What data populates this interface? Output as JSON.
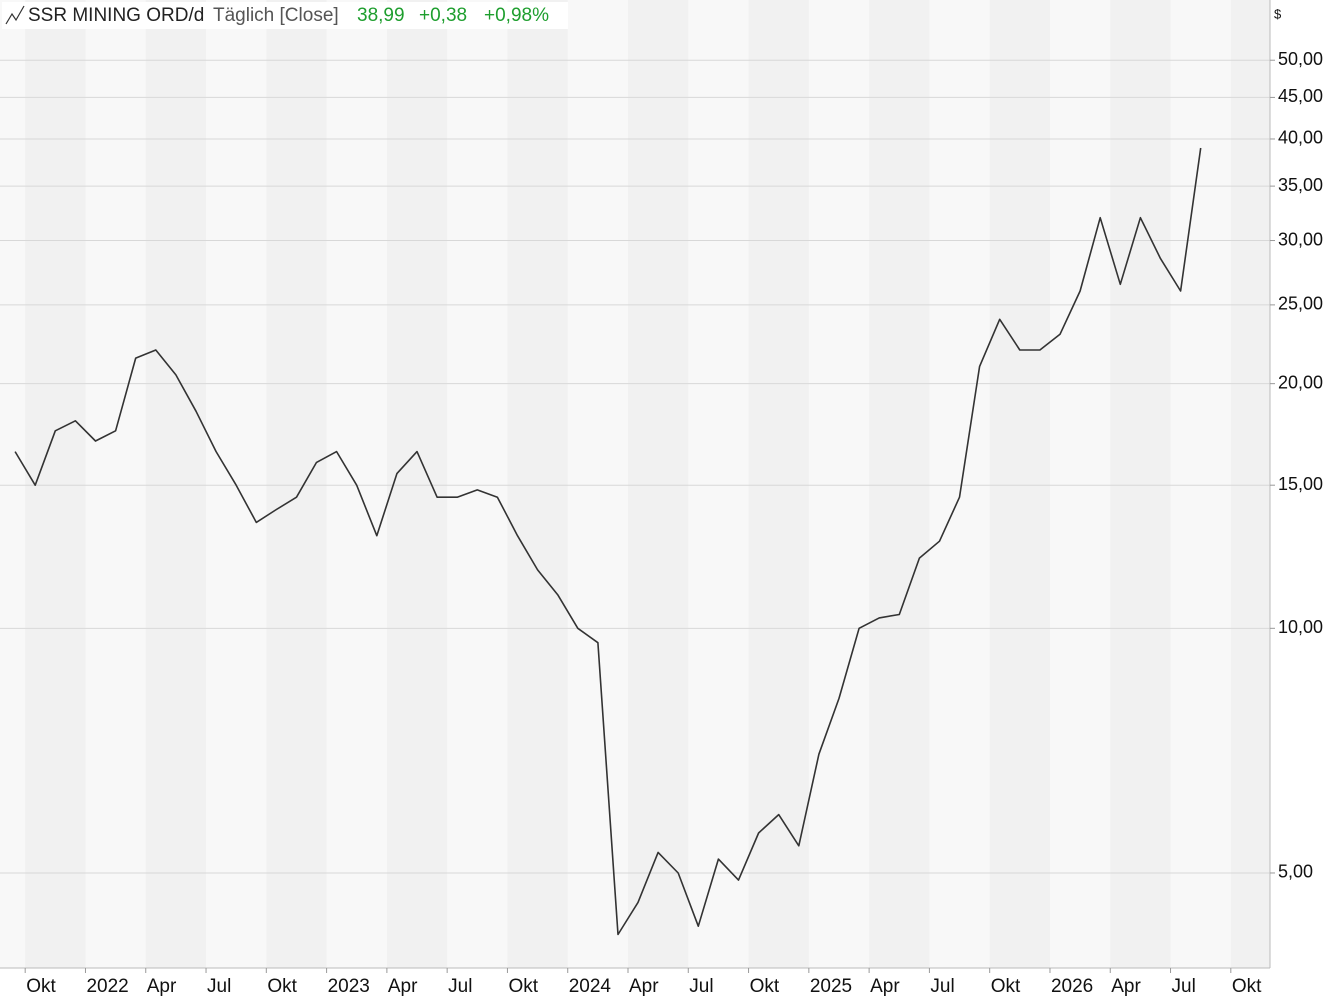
{
  "chart_data": {
    "type": "line",
    "title": "SSR MINING ORD/d",
    "subtitle": "Täglich [Close]",
    "last_value": "38,99",
    "change": "+0,38",
    "change_percent": "+0,98%",
    "y_unit": "$",
    "log_scale": true,
    "grid": true,
    "xlim": [
      "2021-08",
      "2026-12"
    ],
    "ylim": [
      3.82,
      59.3
    ],
    "yticks": [
      {
        "value": 5,
        "label": "5,00"
      },
      {
        "value": 10,
        "label": "10,00"
      },
      {
        "value": 15,
        "label": "15,00"
      },
      {
        "value": 20,
        "label": "20,00"
      },
      {
        "value": 25,
        "label": "25,00"
      },
      {
        "value": 30,
        "label": "30,00"
      },
      {
        "value": 35,
        "label": "35,00"
      },
      {
        "value": 40,
        "label": "40,00"
      },
      {
        "value": 45,
        "label": "45,00"
      },
      {
        "value": 50,
        "label": "50,00"
      }
    ],
    "xticks": [
      {
        "value": "2021-10",
        "label": "Okt"
      },
      {
        "value": "2022-01",
        "label": "2022"
      },
      {
        "value": "2022-04",
        "label": "Apr"
      },
      {
        "value": "2022-07",
        "label": "Jul"
      },
      {
        "value": "2022-10",
        "label": "Okt"
      },
      {
        "value": "2023-01",
        "label": "2023"
      },
      {
        "value": "2023-04",
        "label": "Apr"
      },
      {
        "value": "2023-07",
        "label": "Jul"
      },
      {
        "value": "2023-10",
        "label": "Okt"
      },
      {
        "value": "2024-01",
        "label": "2024"
      },
      {
        "value": "2024-04",
        "label": "Apr"
      },
      {
        "value": "2024-07",
        "label": "Jul"
      },
      {
        "value": "2024-10",
        "label": "Okt"
      },
      {
        "value": "2025-01",
        "label": "2025"
      },
      {
        "value": "2025-04",
        "label": "Apr"
      },
      {
        "value": "2025-07",
        "label": "Jul"
      },
      {
        "value": "2025-10",
        "label": "Okt"
      },
      {
        "value": "2026-01",
        "label": "2026"
      },
      {
        "value": "2026-04",
        "label": "Apr"
      },
      {
        "value": "2026-07",
        "label": "Jul"
      },
      {
        "value": "2026-10",
        "label": "Okt"
      }
    ],
    "x": [
      "2021-09",
      "2021-10",
      "2021-11",
      "2021-12",
      "2022-01",
      "2022-02",
      "2022-03",
      "2022-04",
      "2022-05",
      "2022-06",
      "2022-07",
      "2022-08",
      "2022-09",
      "2022-10",
      "2022-11",
      "2022-12",
      "2023-01",
      "2023-02",
      "2023-03",
      "2023-04",
      "2023-05",
      "2023-06",
      "2023-07",
      "2023-08",
      "2023-09",
      "2023-10",
      "2023-11",
      "2023-12",
      "2024-01",
      "2024-02",
      "2024-03",
      "2024-04",
      "2024-05",
      "2024-06",
      "2024-07",
      "2024-08",
      "2024-09",
      "2024-10",
      "2024-11",
      "2024-12",
      "2025-01",
      "2025-02",
      "2025-03",
      "2025-04",
      "2025-05",
      "2025-06",
      "2025-07",
      "2025-08",
      "2025-09",
      "2025-10",
      "2025-11",
      "2025-12",
      "2026-01",
      "2026-02",
      "2026-03",
      "2026-04",
      "2026-05",
      "2026-06",
      "2026-07",
      "2026-08"
    ],
    "series": [
      {
        "color": "#333333",
        "values": [
          16.5,
          15,
          17.5,
          18,
          17,
          17.5,
          21.5,
          22,
          20.5,
          18.5,
          16.5,
          15,
          13.5,
          14,
          14.5,
          16,
          16.5,
          15,
          13,
          15.5,
          16.5,
          14.5,
          14.5,
          14.8,
          14.5,
          13,
          11.8,
          11,
          10,
          9.6,
          4.2,
          4.6,
          5.3,
          5.0,
          4.3,
          5.2,
          4.9,
          5.6,
          5.9,
          5.4,
          7.0,
          8.2,
          10.0,
          10.3,
          10.4,
          12.2,
          12.8,
          14.5,
          21,
          24,
          22,
          22,
          23,
          26,
          32,
          26.5,
          32,
          28.5,
          26,
          38.99
        ]
      }
    ]
  }
}
